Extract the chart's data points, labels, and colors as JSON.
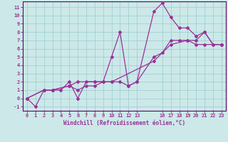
{
  "xlabel": "Windchill (Refroidissement éolien,°C)",
  "bg_color": "#cce8e8",
  "grid_color": "#99cccc",
  "line_color": "#993399",
  "spine_color": "#660066",
  "xlim": [
    -0.5,
    23.5
  ],
  "ylim": [
    -1.5,
    11.7
  ],
  "xticks": [
    0,
    1,
    2,
    3,
    4,
    5,
    6,
    7,
    8,
    9,
    10,
    11,
    12,
    13,
    16,
    17,
    18,
    19,
    20,
    21,
    22,
    23
  ],
  "yticks": [
    -1,
    0,
    1,
    2,
    3,
    4,
    5,
    6,
    7,
    8,
    9,
    10,
    11
  ],
  "line1_x": [
    0,
    2,
    3,
    4,
    5,
    6,
    7,
    8,
    9,
    10,
    11,
    12,
    13,
    15,
    16,
    17,
    18,
    19,
    20,
    21,
    22,
    23
  ],
  "line1_y": [
    0,
    1,
    1,
    1,
    2,
    0,
    2,
    2,
    2,
    5,
    8,
    1.5,
    2,
    10.5,
    11.5,
    9.8,
    8.5,
    8.5,
    7.5,
    8,
    6.5,
    6.5
  ],
  "line2_x": [
    0,
    1,
    2,
    3,
    5,
    6,
    7,
    8,
    9,
    10,
    11,
    12,
    13,
    15,
    16,
    17,
    18,
    19,
    20,
    21,
    22,
    23
  ],
  "line2_y": [
    0,
    -1,
    1,
    1,
    1.5,
    1,
    1.5,
    1.5,
    2,
    2,
    2,
    1.5,
    2,
    5,
    5.5,
    7,
    7,
    7,
    7,
    8,
    6.5,
    6.5
  ],
  "line3_x": [
    0,
    2,
    3,
    5,
    6,
    8,
    9,
    10,
    15,
    17,
    19,
    20,
    21,
    23
  ],
  "line3_y": [
    0,
    1,
    1,
    1.5,
    2,
    2,
    2,
    2,
    4.5,
    6.5,
    7,
    6.5,
    6.5,
    6.5
  ],
  "tick_fontsize": 5,
  "xlabel_fontsize": 5.5
}
